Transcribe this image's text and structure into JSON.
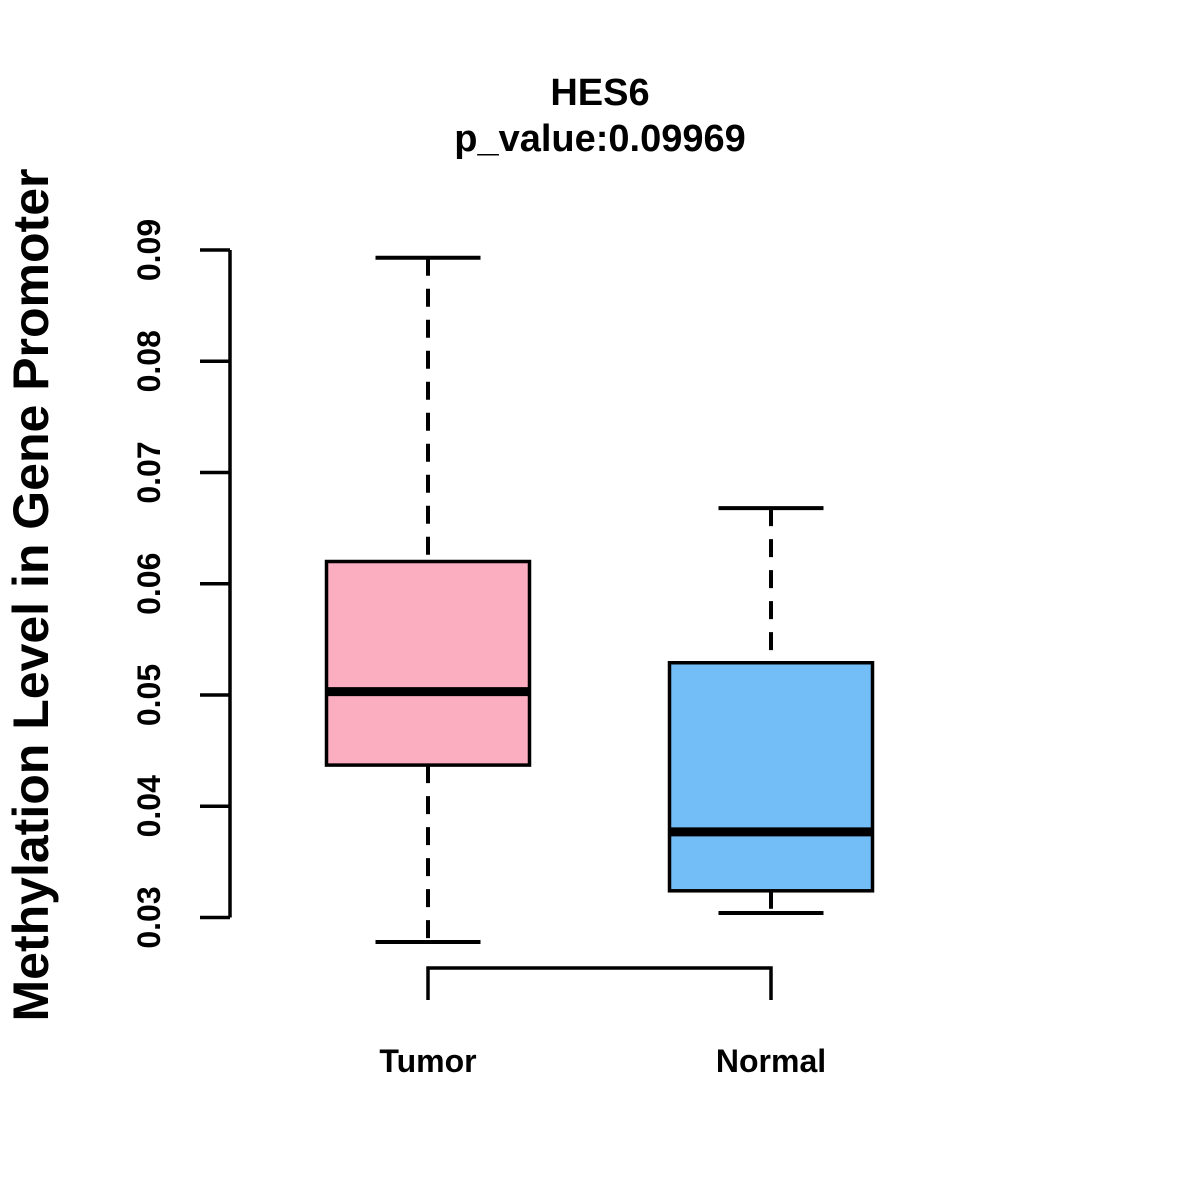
{
  "title": "HES6",
  "subtitle": "p_value:0.09969",
  "colors": {
    "tumor_fill": "#FCAEC1",
    "normal_fill": "#74BEF8",
    "stroke": "#000000",
    "background": "#FFFFFF"
  },
  "chart_data": {
    "type": "boxplot",
    "title": "HES6",
    "subtitle": "p_value:0.09969",
    "xlabel": "",
    "ylabel": "Methylation Level in Gene Promoter",
    "categories": [
      "Tumor",
      "Normal"
    ],
    "y_ticks": [
      0.03,
      0.04,
      0.05,
      0.06,
      0.07,
      0.08,
      0.09
    ],
    "y_tick_format_decimals": 2,
    "ylim": [
      0.0278,
      0.0905
    ],
    "grid": false,
    "legend": "none",
    "series": [
      {
        "name": "Tumor",
        "color": "#FCAEC1",
        "whisker_low": 0.0278,
        "q1": 0.0437,
        "median": 0.0503,
        "q3": 0.062,
        "whisker_high": 0.0893
      },
      {
        "name": "Normal",
        "color": "#74BEF8",
        "whisker_low": 0.0304,
        "q1": 0.0324,
        "median": 0.0377,
        "q3": 0.0529,
        "whisker_high": 0.0668
      }
    ]
  }
}
